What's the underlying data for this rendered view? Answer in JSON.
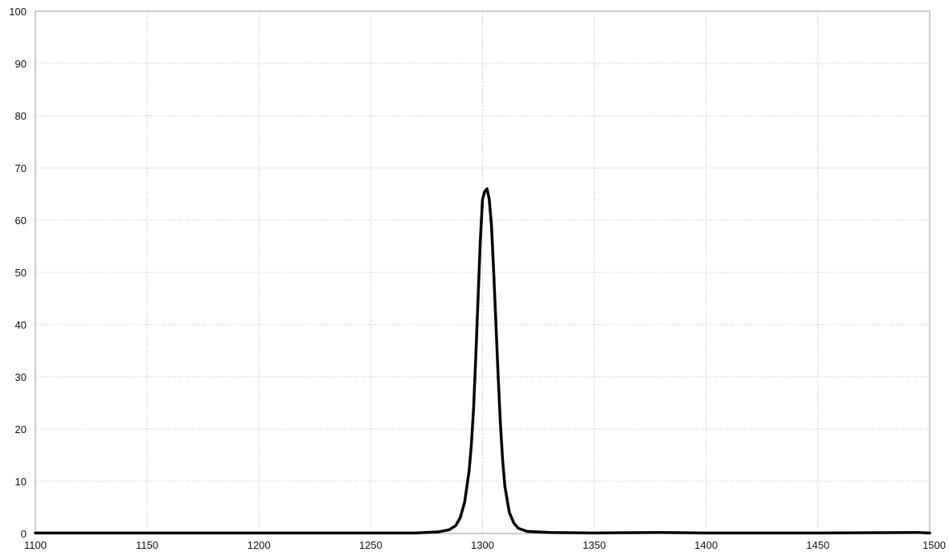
{
  "chart_data": {
    "type": "line",
    "title": "",
    "xlabel": "",
    "ylabel": "",
    "xlim": [
      1100,
      1500
    ],
    "ylim": [
      0,
      100
    ],
    "x_ticks": [
      1100,
      1150,
      1200,
      1250,
      1300,
      1350,
      1400,
      1450,
      1500
    ],
    "y_ticks": [
      0,
      10,
      20,
      30,
      40,
      50,
      60,
      70,
      80,
      90,
      100
    ],
    "x_tick_labels": [
      "1100",
      "1150",
      "1200",
      "1250",
      "1300",
      "1350",
      "1400",
      "1450",
      "1500"
    ],
    "y_tick_labels": [
      "0",
      "10",
      "20",
      "30",
      "40",
      "50",
      "60",
      "70",
      "80",
      "90",
      "100"
    ],
    "grid": true,
    "legend": "none",
    "series": [
      {
        "color": "#000000",
        "x": [
          1100,
          1150,
          1200,
          1250,
          1270,
          1280,
          1285,
          1288,
          1290,
          1292,
          1294,
          1295,
          1296,
          1297,
          1298,
          1299,
          1300,
          1301,
          1302,
          1303,
          1304,
          1305,
          1306,
          1307,
          1308,
          1309,
          1310,
          1312,
          1314,
          1316,
          1320,
          1330,
          1350,
          1380,
          1400,
          1450,
          1495,
          1500
        ],
        "y": [
          0.1,
          0.1,
          0.1,
          0.1,
          0.1,
          0.3,
          0.7,
          1.5,
          3,
          6,
          12,
          17,
          24,
          34,
          45,
          56,
          64,
          65.5,
          66,
          64,
          59,
          50,
          40,
          30,
          21,
          14,
          9,
          4,
          2,
          1,
          0.4,
          0.2,
          0.1,
          0.2,
          0.1,
          0.1,
          0.2,
          0.1
        ]
      }
    ]
  }
}
